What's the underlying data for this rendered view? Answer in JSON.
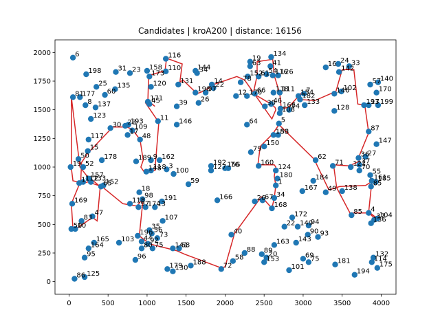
{
  "chart_data": {
    "type": "scatter",
    "title": "Candidates | kroA200 | distance: 16156",
    "xlabel": "",
    "ylabel": "",
    "xlim": [
      -180,
      4190
    ],
    "ylim": [
      -110,
      2110
    ],
    "xticks": [
      0,
      500,
      1000,
      1500,
      2000,
      2500,
      3000,
      3500,
      4000
    ],
    "yticks": [
      0,
      250,
      500,
      750,
      1000,
      1250,
      1500,
      1750,
      2000
    ],
    "point_color": "#1f77b4",
    "route_color": "#d62728",
    "grid": false,
    "points": [
      {
        "id": "6",
        "x": 50,
        "y": 1955
      },
      {
        "id": "198",
        "x": 220,
        "y": 1810
      },
      {
        "id": "31",
        "x": 600,
        "y": 1830
      },
      {
        "id": "23",
        "x": 780,
        "y": 1820
      },
      {
        "id": "158",
        "x": 1000,
        "y": 1840
      },
      {
        "id": "116",
        "x": 1240,
        "y": 1945
      },
      {
        "id": "110",
        "x": 1240,
        "y": 1835
      },
      {
        "id": "34",
        "x": 1640,
        "y": 1820
      },
      {
        "id": "144",
        "x": 1620,
        "y": 1840
      },
      {
        "id": "25",
        "x": 350,
        "y": 1700
      },
      {
        "id": "135",
        "x": 590,
        "y": 1680
      },
      {
        "id": "173",
        "x": 1030,
        "y": 1790
      },
      {
        "id": "120",
        "x": 1050,
        "y": 1700
      },
      {
        "id": "131",
        "x": 1400,
        "y": 1720
      },
      {
        "id": "14",
        "x": 1830,
        "y": 1720
      },
      {
        "id": "22",
        "x": 1850,
        "y": 1690
      },
      {
        "id": "190",
        "x": 1620,
        "y": 1650
      },
      {
        "id": "97",
        "x": 1750,
        "y": 1650
      },
      {
        "id": "81",
        "x": 50,
        "y": 1610
      },
      {
        "id": "177",
        "x": 140,
        "y": 1610
      },
      {
        "id": "60",
        "x": 460,
        "y": 1630
      },
      {
        "id": "8",
        "x": 210,
        "y": 1540
      },
      {
        "id": "137",
        "x": 340,
        "y": 1520
      },
      {
        "id": "171",
        "x": 1010,
        "y": 1570
      },
      {
        "id": "45",
        "x": 1030,
        "y": 1550
      },
      {
        "id": "26",
        "x": 1660,
        "y": 1560
      },
      {
        "id": "39",
        "x": 1380,
        "y": 1530
      },
      {
        "id": "123",
        "x": 280,
        "y": 1420
      },
      {
        "id": "193",
        "x": 760,
        "y": 1370
      },
      {
        "id": "28",
        "x": 720,
        "y": 1360
      },
      {
        "id": "30",
        "x": 530,
        "y": 1340
      },
      {
        "id": "109",
        "x": 810,
        "y": 1320
      },
      {
        "id": "17",
        "x": 750,
        "y": 1280
      },
      {
        "id": "11",
        "x": 1140,
        "y": 1400
      },
      {
        "id": "146",
        "x": 1380,
        "y": 1370
      },
      {
        "id": "117",
        "x": 250,
        "y": 1240
      },
      {
        "id": "48",
        "x": 910,
        "y": 1240
      },
      {
        "id": "15",
        "x": 240,
        "y": 1140
      },
      {
        "id": "50",
        "x": 120,
        "y": 1070
      },
      {
        "id": "178",
        "x": 420,
        "y": 1060
      },
      {
        "id": "189",
        "x": 860,
        "y": 1050
      },
      {
        "id": "9",
        "x": 1050,
        "y": 1060
      },
      {
        "id": "162",
        "x": 1160,
        "y": 1060
      },
      {
        "id": "19",
        "x": 20,
        "y": 1000
      },
      {
        "id": "52",
        "x": 180,
        "y": 1000
      },
      {
        "id": "118",
        "x": 1050,
        "y": 970
      },
      {
        "id": "148",
        "x": 990,
        "y": 960
      },
      {
        "id": "3",
        "x": 1250,
        "y": 980
      },
      {
        "id": "100",
        "x": 1340,
        "y": 940
      },
      {
        "id": "59",
        "x": 1530,
        "y": 850
      },
      {
        "id": "192",
        "x": 1820,
        "y": 1010
      },
      {
        "id": "127",
        "x": 1820,
        "y": 970
      },
      {
        "id": "156",
        "x": 2000,
        "y": 990
      },
      {
        "id": "76",
        "x": 2040,
        "y": 990
      },
      {
        "id": "157",
        "x": 250,
        "y": 900
      },
      {
        "id": "112",
        "x": 180,
        "y": 870
      },
      {
        "id": "1",
        "x": 130,
        "y": 860
      },
      {
        "id": "133",
        "x": 280,
        "y": 870
      },
      {
        "id": "65",
        "x": 410,
        "y": 830
      },
      {
        "id": "152",
        "x": 440,
        "y": 840
      },
      {
        "id": "18",
        "x": 900,
        "y": 780
      },
      {
        "id": "98",
        "x": 940,
        "y": 720
      },
      {
        "id": "118b",
        "x": 780,
        "y": 680
      },
      {
        "id": "191",
        "x": 1190,
        "y": 700
      },
      {
        "id": "97b",
        "x": 890,
        "y": 650
      },
      {
        "id": "174",
        "x": 980,
        "y": 650
      },
      {
        "id": "13",
        "x": 1100,
        "y": 650
      },
      {
        "id": "169",
        "x": 40,
        "y": 680
      },
      {
        "id": "47",
        "x": 300,
        "y": 570
      },
      {
        "id": "83",
        "x": 160,
        "y": 530
      },
      {
        "id": "107",
        "x": 1200,
        "y": 530
      },
      {
        "id": "50b",
        "x": 30,
        "y": 460
      },
      {
        "id": "10",
        "x": 80,
        "y": 460
      },
      {
        "id": "35",
        "x": 1030,
        "y": 450
      },
      {
        "id": "56",
        "x": 1060,
        "y": 420
      },
      {
        "id": "73",
        "x": 1130,
        "y": 380
      },
      {
        "id": "196",
        "x": 880,
        "y": 400
      },
      {
        "id": "165",
        "x": 320,
        "y": 340
      },
      {
        "id": "103",
        "x": 640,
        "y": 340
      },
      {
        "id": "44",
        "x": 930,
        "y": 350
      },
      {
        "id": "92",
        "x": 1010,
        "y": 330
      },
      {
        "id": "164",
        "x": 250,
        "y": 290
      },
      {
        "id": "68",
        "x": 1410,
        "y": 290
      },
      {
        "id": "80",
        "x": 930,
        "y": 290
      },
      {
        "id": "75",
        "x": 1070,
        "y": 290
      },
      {
        "id": "141",
        "x": 1330,
        "y": 290
      },
      {
        "id": "95",
        "x": 200,
        "y": 210
      },
      {
        "id": "96",
        "x": 850,
        "y": 190
      },
      {
        "id": "188",
        "x": 1560,
        "y": 140
      },
      {
        "id": "179",
        "x": 1260,
        "y": 110
      },
      {
        "id": "130",
        "x": 1330,
        "y": 90
      },
      {
        "id": "72",
        "x": 1950,
        "y": 110
      },
      {
        "id": "58",
        "x": 2100,
        "y": 180
      },
      {
        "id": "86",
        "x": 70,
        "y": 25
      },
      {
        "id": "125",
        "x": 200,
        "y": 40
      },
      {
        "id": "40",
        "x": 2080,
        "y": 410
      },
      {
        "id": "88",
        "x": 2250,
        "y": 250
      },
      {
        "id": "166",
        "x": 1900,
        "y": 710
      },
      {
        "id": "26b",
        "x": 2380,
        "y": 700
      },
      {
        "id": "67",
        "x": 2480,
        "y": 710
      },
      {
        "id": "168",
        "x": 2600,
        "y": 640
      },
      {
        "id": "34b",
        "x": 2630,
        "y": 730
      },
      {
        "id": "1b",
        "x": 2650,
        "y": 840
      },
      {
        "id": "124",
        "x": 2650,
        "y": 970
      },
      {
        "id": "180",
        "x": 2670,
        "y": 900
      },
      {
        "id": "160",
        "x": 2430,
        "y": 1010
      },
      {
        "id": "150",
        "x": 2500,
        "y": 1180
      },
      {
        "id": "79",
        "x": 2330,
        "y": 1130
      },
      {
        "id": "64",
        "x": 2280,
        "y": 1370
      },
      {
        "id": "186",
        "x": 2620,
        "y": 1280
      },
      {
        "id": "53",
        "x": 2680,
        "y": 1280
      },
      {
        "id": "5",
        "x": 2690,
        "y": 1380
      },
      {
        "id": "108",
        "x": 2700,
        "y": 1470
      },
      {
        "id": "166b",
        "x": 2710,
        "y": 1510
      },
      {
        "id": "74",
        "x": 2820,
        "y": 1500
      },
      {
        "id": "46",
        "x": 2590,
        "y": 1550
      },
      {
        "id": "30b",
        "x": 2510,
        "y": 1530
      },
      {
        "id": "12",
        "x": 2140,
        "y": 1620
      },
      {
        "id": "170",
        "x": 2280,
        "y": 1620
      },
      {
        "id": "66",
        "x": 2380,
        "y": 1640
      },
      {
        "id": "111",
        "x": 2700,
        "y": 1650
      },
      {
        "id": "118c",
        "x": 2620,
        "y": 1650
      },
      {
        "id": "152b",
        "x": 2290,
        "y": 1790
      },
      {
        "id": "78",
        "x": 2200,
        "y": 1740
      },
      {
        "id": "61",
        "x": 2430,
        "y": 1790
      },
      {
        "id": "54",
        "x": 2530,
        "y": 1810
      },
      {
        "id": "116b",
        "x": 2610,
        "y": 1800
      },
      {
        "id": "126",
        "x": 2680,
        "y": 1800
      },
      {
        "id": "19b",
        "x": 2320,
        "y": 1920
      },
      {
        "id": "63",
        "x": 2320,
        "y": 1880
      },
      {
        "id": "134",
        "x": 2590,
        "y": 1960
      },
      {
        "id": "41",
        "x": 2580,
        "y": 1880
      },
      {
        "id": "154",
        "x": 2940,
        "y": 1620
      },
      {
        "id": "7",
        "x": 3010,
        "y": 1640
      },
      {
        "id": "182",
        "x": 2960,
        "y": 1590
      },
      {
        "id": "133b",
        "x": 3020,
        "y": 1540
      },
      {
        "id": "146b",
        "x": 3400,
        "y": 1640
      },
      {
        "id": "102",
        "x": 3490,
        "y": 1660
      },
      {
        "id": "128",
        "x": 3400,
        "y": 1490
      },
      {
        "id": "16",
        "x": 3290,
        "y": 1870
      },
      {
        "id": "24",
        "x": 3450,
        "y": 1900
      },
      {
        "id": "33",
        "x": 3590,
        "y": 1880
      },
      {
        "id": "142",
        "x": 3460,
        "y": 1830
      },
      {
        "id": "57",
        "x": 3860,
        "y": 1720
      },
      {
        "id": "140",
        "x": 3960,
        "y": 1740
      },
      {
        "id": "170b",
        "x": 3940,
        "y": 1650
      },
      {
        "id": "193b",
        "x": 3780,
        "y": 1540
      },
      {
        "id": "17b",
        "x": 3840,
        "y": 1540
      },
      {
        "id": "199",
        "x": 3960,
        "y": 1540
      },
      {
        "id": "87",
        "x": 3840,
        "y": 1310
      },
      {
        "id": "147",
        "x": 3940,
        "y": 1200
      },
      {
        "id": "36",
        "x": 3710,
        "y": 1080
      },
      {
        "id": "27",
        "x": 3800,
        "y": 1090
      },
      {
        "id": "62",
        "x": 3160,
        "y": 1060
      },
      {
        "id": "121",
        "x": 3610,
        "y": 1000
      },
      {
        "id": "37",
        "x": 3720,
        "y": 1020
      },
      {
        "id": "70",
        "x": 3720,
        "y": 970
      },
      {
        "id": "71",
        "x": 3380,
        "y": 1010
      },
      {
        "id": "55",
        "x": 3860,
        "y": 930
      },
      {
        "id": "161",
        "x": 3880,
        "y": 880
      },
      {
        "id": "85",
        "x": 3870,
        "y": 830
      },
      {
        "id": "185",
        "x": 3930,
        "y": 870
      },
      {
        "id": "184",
        "x": 3130,
        "y": 880
      },
      {
        "id": "49",
        "x": 3290,
        "y": 780
      },
      {
        "id": "138",
        "x": 3500,
        "y": 790
      },
      {
        "id": "167",
        "x": 2990,
        "y": 790
      },
      {
        "id": "4",
        "x": 3840,
        "y": 600
      },
      {
        "id": "85b",
        "x": 3620,
        "y": 580
      },
      {
        "id": "104",
        "x": 3950,
        "y": 550
      },
      {
        "id": "37b",
        "x": 3910,
        "y": 540
      },
      {
        "id": "136",
        "x": 3870,
        "y": 510
      },
      {
        "id": "172",
        "x": 2860,
        "y": 560
      },
      {
        "id": "22b",
        "x": 2760,
        "y": 480
      },
      {
        "id": "149",
        "x": 2930,
        "y": 480
      },
      {
        "id": "94",
        "x": 3070,
        "y": 490
      },
      {
        "id": "90",
        "x": 3060,
        "y": 410
      },
      {
        "id": "93",
        "x": 3190,
        "y": 390
      },
      {
        "id": "143",
        "x": 2910,
        "y": 340
      },
      {
        "id": "163",
        "x": 2630,
        "y": 320
      },
      {
        "id": "89",
        "x": 2470,
        "y": 240
      },
      {
        "id": "20",
        "x": 2530,
        "y": 210
      },
      {
        "id": "153",
        "x": 2500,
        "y": 170
      },
      {
        "id": "69",
        "x": 3000,
        "y": 200
      },
      {
        "id": "75b",
        "x": 3070,
        "y": 170
      },
      {
        "id": "101",
        "x": 2820,
        "y": 100
      },
      {
        "id": "181",
        "x": 3410,
        "y": 150
      },
      {
        "id": "194",
        "x": 3660,
        "y": 60
      },
      {
        "id": "132",
        "x": 3900,
        "y": 210
      },
      {
        "id": "175",
        "x": 3950,
        "y": 120
      },
      {
        "id": "114",
        "x": 3880,
        "y": 170
      }
    ],
    "route": [
      [
        30,
        1610
      ],
      [
        30,
        990
      ],
      [
        50,
        880
      ],
      [
        190,
        860
      ],
      [
        240,
        870
      ],
      [
        420,
        830
      ],
      [
        690,
        680
      ],
      [
        870,
        660
      ],
      [
        950,
        730
      ],
      [
        900,
        400
      ],
      [
        1030,
        330
      ],
      [
        1380,
        270
      ],
      [
        1480,
        240
      ],
      [
        1950,
        120
      ],
      [
        2000,
        130
      ],
      [
        2120,
        420
      ],
      [
        2420,
        700
      ],
      [
        2470,
        740
      ],
      [
        2600,
        640
      ],
      [
        2630,
        730
      ],
      [
        2650,
        840
      ],
      [
        2630,
        920
      ],
      [
        2650,
        1000
      ],
      [
        2630,
        1020
      ],
      [
        2420,
        1020
      ],
      [
        2450,
        1180
      ],
      [
        2610,
        1290
      ],
      [
        2690,
        1370
      ],
      [
        3140,
        1070
      ],
      [
        3330,
        800
      ],
      [
        3470,
        830
      ],
      [
        3800,
        840
      ],
      [
        3870,
        870
      ],
      [
        3860,
        920
      ],
      [
        3880,
        870
      ],
      [
        3840,
        610
      ],
      [
        3950,
        550
      ],
      [
        3940,
        540
      ],
      [
        3840,
        600
      ],
      [
        3600,
        600
      ],
      [
        3430,
        820
      ],
      [
        3390,
        1020
      ],
      [
        3590,
        1010
      ],
      [
        3720,
        1050
      ],
      [
        3720,
        1100
      ],
      [
        3840,
        1300
      ],
      [
        3790,
        1540
      ],
      [
        3700,
        1550
      ],
      [
        3650,
        1850
      ],
      [
        3500,
        1850
      ],
      [
        3420,
        1660
      ],
      [
        3150,
        1580
      ],
      [
        2960,
        1590
      ],
      [
        2970,
        1640
      ],
      [
        2810,
        1520
      ],
      [
        2720,
        1510
      ],
      [
        2700,
        1640
      ],
      [
        2630,
        1800
      ],
      [
        2610,
        1940
      ],
      [
        2410,
        1920
      ],
      [
        2410,
        1800
      ],
      [
        2360,
        1640
      ],
      [
        2590,
        1550
      ],
      [
        2640,
        1520
      ],
      [
        2650,
        1500
      ],
      [
        2600,
        1420
      ],
      [
        2250,
        1760
      ],
      [
        2150,
        1790
      ],
      [
        1850,
        1720
      ],
      [
        1750,
        1670
      ],
      [
        1640,
        1640
      ],
      [
        1460,
        1760
      ],
      [
        1420,
        1740
      ],
      [
        1450,
        1900
      ],
      [
        1250,
        1950
      ],
      [
        1230,
        1840
      ],
      [
        1020,
        1800
      ],
      [
        1010,
        1580
      ],
      [
        1100,
        1530
      ],
      [
        1060,
        1550
      ],
      [
        1010,
        1570
      ],
      [
        980,
        1560
      ],
      [
        1150,
        1390
      ],
      [
        1100,
        970
      ],
      [
        960,
        960
      ],
      [
        920,
        1000
      ],
      [
        950,
        1060
      ],
      [
        910,
        1240
      ],
      [
        810,
        1330
      ],
      [
        740,
        1350
      ],
      [
        560,
        1350
      ],
      [
        240,
        1120
      ],
      [
        160,
        1040
      ],
      [
        150,
        880
      ],
      [
        30,
        680
      ],
      [
        50,
        460
      ],
      [
        110,
        470
      ],
      [
        300,
        560
      ],
      [
        360,
        530
      ],
      [
        400,
        830
      ],
      [
        220,
        930
      ],
      [
        140,
        1000
      ],
      [
        30,
        1610
      ]
    ]
  }
}
